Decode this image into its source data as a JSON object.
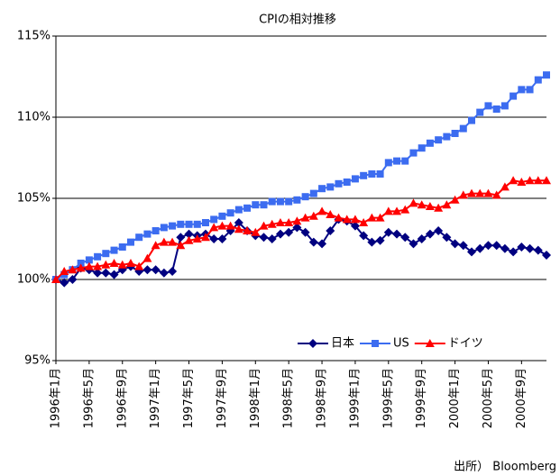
{
  "chart_data": {
    "type": "line",
    "title": "CPIの相対推移",
    "source": "出所） Bloomberg",
    "categories": [
      "1996年1月",
      null,
      null,
      null,
      "1996年5月",
      null,
      null,
      null,
      "1996年9月",
      null,
      null,
      null,
      "1997年1月",
      null,
      null,
      null,
      "1997年5月",
      null,
      null,
      null,
      "1997年9月",
      null,
      null,
      null,
      "1998年1月",
      null,
      null,
      null,
      "1998年5月",
      null,
      null,
      null,
      "1998年9月",
      null,
      null,
      null,
      "1999年1月",
      null,
      null,
      null,
      "1999年5月",
      null,
      null,
      null,
      "1999年9月",
      null,
      null,
      null,
      "2000年1月",
      null,
      null,
      null,
      "2000年5月",
      null,
      null,
      null,
      "2000年9月",
      null,
      null,
      null
    ],
    "series": [
      {
        "name": "日本",
        "color": "#000080",
        "marker": "diamond",
        "values": [
          100.0,
          99.8,
          100.0,
          100.7,
          100.6,
          100.4,
          100.4,
          100.3,
          100.6,
          100.8,
          100.5,
          100.6,
          100.6,
          100.4,
          100.5,
          102.6,
          102.8,
          102.7,
          102.8,
          102.5,
          102.5,
          103.0,
          103.5,
          103.0,
          102.7,
          102.6,
          102.5,
          102.8,
          102.9,
          103.2,
          102.9,
          102.3,
          102.2,
          103.0,
          103.7,
          103.6,
          103.3,
          102.7,
          102.3,
          102.4,
          102.9,
          102.8,
          102.6,
          102.2,
          102.5,
          102.8,
          103.0,
          102.6,
          102.2,
          102.1,
          101.7,
          101.9,
          102.1,
          102.1,
          101.9,
          101.7,
          102.0,
          101.9,
          101.8,
          101.5
        ]
      },
      {
        "name": "US",
        "color": "#3c6cf0",
        "marker": "square",
        "values": [
          100.0,
          100.3,
          100.6,
          101.0,
          101.2,
          101.4,
          101.6,
          101.8,
          102.0,
          102.3,
          102.6,
          102.8,
          103.0,
          103.2,
          103.3,
          103.4,
          103.4,
          103.4,
          103.5,
          103.7,
          103.9,
          104.1,
          104.3,
          104.4,
          104.6,
          104.6,
          104.8,
          104.8,
          104.8,
          104.9,
          105.1,
          105.3,
          105.6,
          105.7,
          105.9,
          106.0,
          106.2,
          106.4,
          106.5,
          106.5,
          107.2,
          107.3,
          107.3,
          107.8,
          108.1,
          108.4,
          108.6,
          108.8,
          109.0,
          109.3,
          109.8,
          110.3,
          110.7,
          110.5,
          110.7,
          111.3,
          111.7,
          111.7,
          112.3,
          112.6
        ]
      },
      {
        "name": "ドイツ",
        "color": "#ff0000",
        "marker": "triangle",
        "values": [
          100.0,
          100.5,
          100.6,
          100.7,
          100.8,
          100.8,
          100.9,
          101.0,
          100.9,
          101.0,
          100.8,
          101.3,
          102.1,
          102.3,
          102.3,
          102.1,
          102.4,
          102.5,
          102.6,
          103.2,
          103.3,
          103.3,
          103.1,
          103.0,
          102.9,
          103.3,
          103.4,
          103.5,
          103.5,
          103.6,
          103.8,
          103.9,
          104.2,
          104.0,
          103.8,
          103.7,
          103.7,
          103.5,
          103.8,
          103.8,
          104.2,
          104.2,
          104.3,
          104.7,
          104.6,
          104.5,
          104.4,
          104.6,
          104.9,
          105.2,
          105.3,
          105.3,
          105.3,
          105.2,
          105.7,
          106.1,
          106.0,
          106.1,
          106.1,
          106.1
        ]
      }
    ],
    "ylim": [
      95,
      115
    ],
    "yticks": [
      {
        "value": 95,
        "label": "95%"
      },
      {
        "value": 100,
        "label": "100%"
      },
      {
        "value": 105,
        "label": "105%"
      },
      {
        "value": 110,
        "label": "110%"
      },
      {
        "value": 115,
        "label": "115%"
      }
    ],
    "grid": true,
    "legend": "bottom-right"
  }
}
